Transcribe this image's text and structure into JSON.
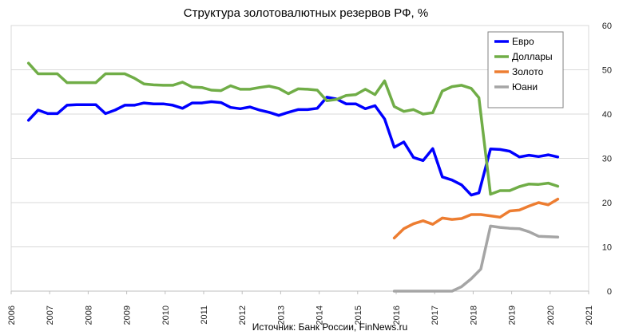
{
  "chart_data": {
    "type": "line",
    "title": "Структура золотовалютных резервов РФ, %",
    "source": "Источник: Банк России, FinNews.ru",
    "xlim": [
      2006,
      2021
    ],
    "ylim": [
      0,
      60
    ],
    "x_ticks": [
      "2006",
      "2007",
      "2008",
      "2009",
      "2010",
      "2011",
      "2012",
      "2013",
      "2014",
      "2015",
      "2016",
      "2017",
      "2018",
      "2019",
      "2020",
      "2021"
    ],
    "y_ticks": [
      "0",
      "10",
      "20",
      "30",
      "40",
      "50",
      "60"
    ],
    "y_axis_side": "right",
    "grid": "horizontal",
    "legend_position": "top-right",
    "series": [
      {
        "name": "Евро",
        "color": "#0000ff",
        "points": [
          [
            2006.45,
            38.6
          ],
          [
            2006.7,
            40.9
          ],
          [
            2006.95,
            40.1
          ],
          [
            2007.2,
            40.1
          ],
          [
            2007.45,
            42.0
          ],
          [
            2007.7,
            42.1
          ],
          [
            2007.95,
            42.1
          ],
          [
            2008.2,
            42.1
          ],
          [
            2008.45,
            40.1
          ],
          [
            2008.7,
            40.9
          ],
          [
            2008.95,
            42.0
          ],
          [
            2009.2,
            42.0
          ],
          [
            2009.45,
            42.5
          ],
          [
            2009.7,
            42.3
          ],
          [
            2009.95,
            42.3
          ],
          [
            2010.2,
            42.0
          ],
          [
            2010.45,
            41.3
          ],
          [
            2010.7,
            42.5
          ],
          [
            2010.95,
            42.5
          ],
          [
            2011.2,
            42.8
          ],
          [
            2011.45,
            42.6
          ],
          [
            2011.7,
            41.5
          ],
          [
            2011.95,
            41.2
          ],
          [
            2012.2,
            41.6
          ],
          [
            2012.45,
            40.9
          ],
          [
            2012.7,
            40.4
          ],
          [
            2012.95,
            39.7
          ],
          [
            2013.2,
            40.4
          ],
          [
            2013.45,
            41.0
          ],
          [
            2013.7,
            41.0
          ],
          [
            2013.95,
            41.3
          ],
          [
            2014.2,
            43.8
          ],
          [
            2014.45,
            43.4
          ],
          [
            2014.7,
            42.3
          ],
          [
            2014.95,
            42.3
          ],
          [
            2015.2,
            41.2
          ],
          [
            2015.45,
            41.9
          ],
          [
            2015.7,
            38.9
          ],
          [
            2015.95,
            32.5
          ],
          [
            2016.2,
            33.7
          ],
          [
            2016.45,
            30.2
          ],
          [
            2016.7,
            29.5
          ],
          [
            2016.95,
            32.2
          ],
          [
            2017.2,
            25.8
          ],
          [
            2017.45,
            25.1
          ],
          [
            2017.7,
            24.0
          ],
          [
            2017.95,
            21.7
          ],
          [
            2018.15,
            22.2
          ],
          [
            2018.45,
            32.1
          ],
          [
            2018.7,
            32.0
          ],
          [
            2018.95,
            31.6
          ],
          [
            2019.2,
            30.3
          ],
          [
            2019.45,
            30.7
          ],
          [
            2019.7,
            30.4
          ],
          [
            2019.95,
            30.8
          ],
          [
            2020.2,
            30.3
          ]
        ]
      },
      {
        "name": "Доллары",
        "color": "#70ad47",
        "points": [
          [
            2006.45,
            51.5
          ],
          [
            2006.7,
            49.1
          ],
          [
            2006.95,
            49.1
          ],
          [
            2007.2,
            49.1
          ],
          [
            2007.45,
            47.1
          ],
          [
            2007.7,
            47.1
          ],
          [
            2007.95,
            47.1
          ],
          [
            2008.2,
            47.1
          ],
          [
            2008.45,
            49.1
          ],
          [
            2008.7,
            49.1
          ],
          [
            2008.95,
            49.1
          ],
          [
            2009.2,
            48.1
          ],
          [
            2009.45,
            46.8
          ],
          [
            2009.7,
            46.6
          ],
          [
            2009.95,
            46.5
          ],
          [
            2010.2,
            46.5
          ],
          [
            2010.45,
            47.2
          ],
          [
            2010.7,
            46.1
          ],
          [
            2010.95,
            46.0
          ],
          [
            2011.2,
            45.4
          ],
          [
            2011.45,
            45.3
          ],
          [
            2011.7,
            46.4
          ],
          [
            2011.95,
            45.6
          ],
          [
            2012.2,
            45.6
          ],
          [
            2012.45,
            46.0
          ],
          [
            2012.7,
            46.3
          ],
          [
            2012.95,
            45.8
          ],
          [
            2013.2,
            44.6
          ],
          [
            2013.45,
            45.7
          ],
          [
            2013.7,
            45.6
          ],
          [
            2013.95,
            45.4
          ],
          [
            2014.2,
            43.0
          ],
          [
            2014.45,
            43.3
          ],
          [
            2014.7,
            44.2
          ],
          [
            2014.95,
            44.4
          ],
          [
            2015.2,
            45.6
          ],
          [
            2015.45,
            44.4
          ],
          [
            2015.7,
            47.5
          ],
          [
            2015.95,
            41.7
          ],
          [
            2016.2,
            40.6
          ],
          [
            2016.45,
            41.0
          ],
          [
            2016.7,
            40.0
          ],
          [
            2016.95,
            40.3
          ],
          [
            2017.2,
            45.2
          ],
          [
            2017.45,
            46.2
          ],
          [
            2017.7,
            46.5
          ],
          [
            2017.95,
            45.8
          ],
          [
            2018.15,
            43.7
          ],
          [
            2018.45,
            21.9
          ],
          [
            2018.7,
            22.7
          ],
          [
            2018.95,
            22.7
          ],
          [
            2019.2,
            23.6
          ],
          [
            2019.45,
            24.2
          ],
          [
            2019.7,
            24.1
          ],
          [
            2019.95,
            24.4
          ],
          [
            2020.2,
            23.7
          ]
        ]
      },
      {
        "name": "Золото",
        "color": "#ed7d31",
        "points": [
          [
            2015.95,
            12.0
          ],
          [
            2016.2,
            14.1
          ],
          [
            2016.45,
            15.2
          ],
          [
            2016.7,
            15.9
          ],
          [
            2016.95,
            15.1
          ],
          [
            2017.2,
            16.5
          ],
          [
            2017.45,
            16.2
          ],
          [
            2017.7,
            16.4
          ],
          [
            2017.95,
            17.3
          ],
          [
            2018.2,
            17.3
          ],
          [
            2018.45,
            17.0
          ],
          [
            2018.7,
            16.7
          ],
          [
            2018.95,
            18.1
          ],
          [
            2019.2,
            18.3
          ],
          [
            2019.45,
            19.2
          ],
          [
            2019.7,
            20.0
          ],
          [
            2019.95,
            19.5
          ],
          [
            2020.2,
            20.8
          ]
        ]
      },
      {
        "name": "Юани",
        "color": "#a5a5a5",
        "points": [
          [
            2015.95,
            0.0
          ],
          [
            2016.2,
            0.0
          ],
          [
            2016.45,
            0.0
          ],
          [
            2016.7,
            0.0
          ],
          [
            2016.95,
            0.0
          ],
          [
            2017.2,
            0.0
          ],
          [
            2017.45,
            0.0
          ],
          [
            2017.7,
            1.0
          ],
          [
            2017.95,
            2.8
          ],
          [
            2018.2,
            5.0
          ],
          [
            2018.45,
            14.7
          ],
          [
            2018.7,
            14.4
          ],
          [
            2018.95,
            14.2
          ],
          [
            2019.2,
            14.1
          ],
          [
            2019.45,
            13.4
          ],
          [
            2019.7,
            12.4
          ],
          [
            2019.95,
            12.3
          ],
          [
            2020.2,
            12.2
          ]
        ]
      }
    ]
  }
}
